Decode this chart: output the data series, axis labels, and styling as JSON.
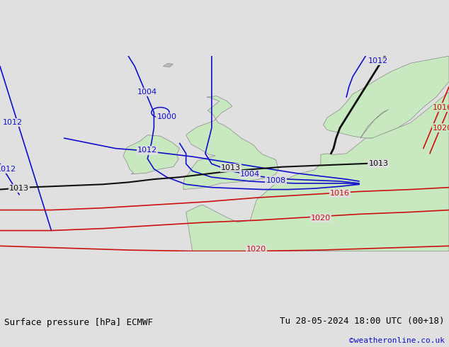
{
  "title_left": "Surface pressure [hPa] ECMWF",
  "title_right": "Tu 28-05-2024 18:00 UTC (00+18)",
  "credit": "©weatheronline.co.uk",
  "bg_color": "#e0e0e0",
  "land_color": "#c8e8c0",
  "land_border_color": "#888888",
  "blue": "#1010cc",
  "black": "#101010",
  "red": "#cc1010",
  "footer_fontsize": 9,
  "credit_color": "#1010cc",
  "lon_min": -20,
  "lon_max": 15,
  "lat_min": 44,
  "lat_max": 63
}
